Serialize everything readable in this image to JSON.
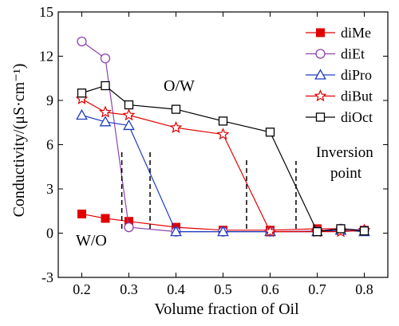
{
  "chart_data": {
    "type": "line",
    "xlabel": "Volume fraction of Oil",
    "ylabel": "Conductivity/(μS·cm⁻¹)",
    "xlim": [
      0.15,
      0.85
    ],
    "ylim": [
      -3,
      15
    ],
    "xticks": [
      0.2,
      0.3,
      0.4,
      0.5,
      0.6,
      0.7,
      0.8
    ],
    "xtick_labels": [
      "0.2",
      "0.3",
      "0.4",
      "0.5",
      "0.6",
      "0.7",
      "0.8"
    ],
    "yticks": [
      -3,
      0,
      3,
      6,
      9,
      12,
      15
    ],
    "ytick_labels": [
      "-3",
      "0",
      "3",
      "6",
      "9",
      "12",
      "15"
    ],
    "grid": false,
    "legend_position": "top-right",
    "series": [
      {
        "name": "diMe",
        "marker": "square-filled",
        "color": "#e00000",
        "x": [
          0.2,
          0.25,
          0.3,
          0.4,
          0.5,
          0.6,
          0.7,
          0.75,
          0.8
        ],
        "y": [
          1.3,
          1.0,
          0.8,
          0.4,
          0.2,
          0.2,
          0.3,
          0.3,
          0.2
        ]
      },
      {
        "name": "diEt",
        "marker": "circle-open",
        "color": "#8e44ad",
        "x": [
          0.2,
          0.25,
          0.3,
          0.4,
          0.5,
          0.6,
          0.7,
          0.75,
          0.8
        ],
        "y": [
          13.0,
          11.85,
          0.4,
          0.1,
          0.1,
          0.1,
          0.15,
          0.3,
          0.2
        ]
      },
      {
        "name": "diPro",
        "marker": "triangle-open",
        "color": "#1f3fbf",
        "x": [
          0.2,
          0.25,
          0.3,
          0.4,
          0.5,
          0.6,
          0.7,
          0.75,
          0.8
        ],
        "y": [
          8.0,
          7.55,
          7.3,
          0.1,
          0.1,
          0.1,
          0.1,
          0.2,
          0.1
        ]
      },
      {
        "name": "diBut",
        "marker": "star-open",
        "color": "#e00000",
        "x": [
          0.2,
          0.25,
          0.3,
          0.4,
          0.5,
          0.6,
          0.7,
          0.75,
          0.8
        ],
        "y": [
          9.1,
          8.2,
          8.0,
          7.15,
          6.7,
          0.1,
          0.1,
          0.1,
          0.2
        ]
      },
      {
        "name": "diOct",
        "marker": "square-open",
        "color": "#000000",
        "x": [
          0.2,
          0.25,
          0.3,
          0.4,
          0.5,
          0.6,
          0.7,
          0.75,
          0.8
        ],
        "y": [
          9.5,
          10.0,
          8.7,
          8.4,
          7.6,
          6.85,
          0.1,
          0.3,
          0.15
        ]
      }
    ],
    "annotations": {
      "ow_label": "O/W",
      "wo_label": "W/O",
      "inversion_line1": "Inversion",
      "inversion_line2": "point",
      "inversion_markers": [
        {
          "x": 0.285,
          "y_from": 0.3,
          "y_to": 5.5
        },
        {
          "x": 0.345,
          "y_from": 0.3,
          "y_to": 5.5
        },
        {
          "x": 0.55,
          "y_from": 0.3,
          "y_to": 5.1
        },
        {
          "x": 0.655,
          "y_from": 0.3,
          "y_to": 4.9
        }
      ]
    }
  }
}
